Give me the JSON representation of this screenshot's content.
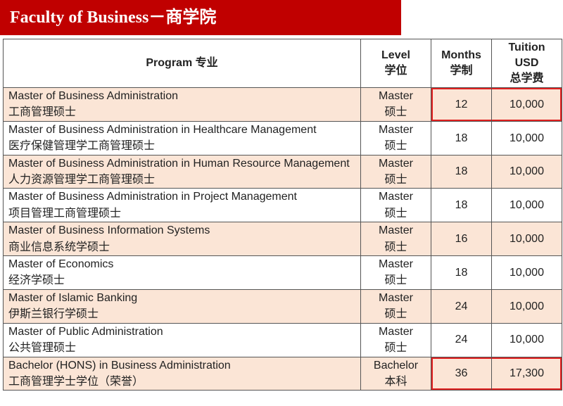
{
  "header": {
    "title": "Faculty of Business－商学院"
  },
  "table": {
    "columns": [
      {
        "lines": [
          "Program  专业"
        ]
      },
      {
        "lines": [
          "Level",
          "学位"
        ]
      },
      {
        "lines": [
          "Months",
          "学制"
        ]
      },
      {
        "lines": [
          "Tuition",
          "USD",
          "总学费"
        ]
      }
    ],
    "rows": [
      {
        "program": "Master of Business Administration",
        "program_cn": "工商管理硕士",
        "level": "Master",
        "level_cn": "硕士",
        "months": "12",
        "tuition": "10,000"
      },
      {
        "program": "Master of Business Administration in Healthcare Management",
        "program_cn": "医疗保健管理学工商管理硕士",
        "level": "Master",
        "level_cn": "硕士",
        "months": "18",
        "tuition": "10,000"
      },
      {
        "program": "Master of Business Administration in Human Resource Management",
        "program_cn": "人力资源管理学工商管理硕士",
        "level": "Master",
        "level_cn": "硕士",
        "months": "18",
        "tuition": "10,000"
      },
      {
        "program": "Master of Business Administration in Project Management",
        "program_cn": "项目管理工商管理硕士",
        "level": "Master",
        "level_cn": "硕士",
        "months": "18",
        "tuition": "10,000"
      },
      {
        "program": "Master of Business Information Systems",
        "program_cn": "商业信息系统学硕士",
        "level": "Master",
        "level_cn": "硕士",
        "months": "16",
        "tuition": "10,000"
      },
      {
        "program": "Master of Economics",
        "program_cn": "经济学硕士",
        "level": "Master",
        "level_cn": "硕士",
        "months": "18",
        "tuition": "10,000"
      },
      {
        "program": "Master of Islamic Banking",
        "program_cn": "伊斯兰银行学硕士",
        "level": "Master",
        "level_cn": "硕士",
        "months": "24",
        "tuition": "10,000"
      },
      {
        "program": "Master of Public Administration",
        "program_cn": "公共管理硕士",
        "level": "Master",
        "level_cn": "硕士",
        "months": "24",
        "tuition": "10,000"
      },
      {
        "program": "Bachelor (HONS) in Business Administration",
        "program_cn": "工商管理学士学位（荣誉）",
        "level": "Bachelor",
        "level_cn": "本科",
        "months": "36",
        "tuition": "17,300"
      }
    ]
  }
}
